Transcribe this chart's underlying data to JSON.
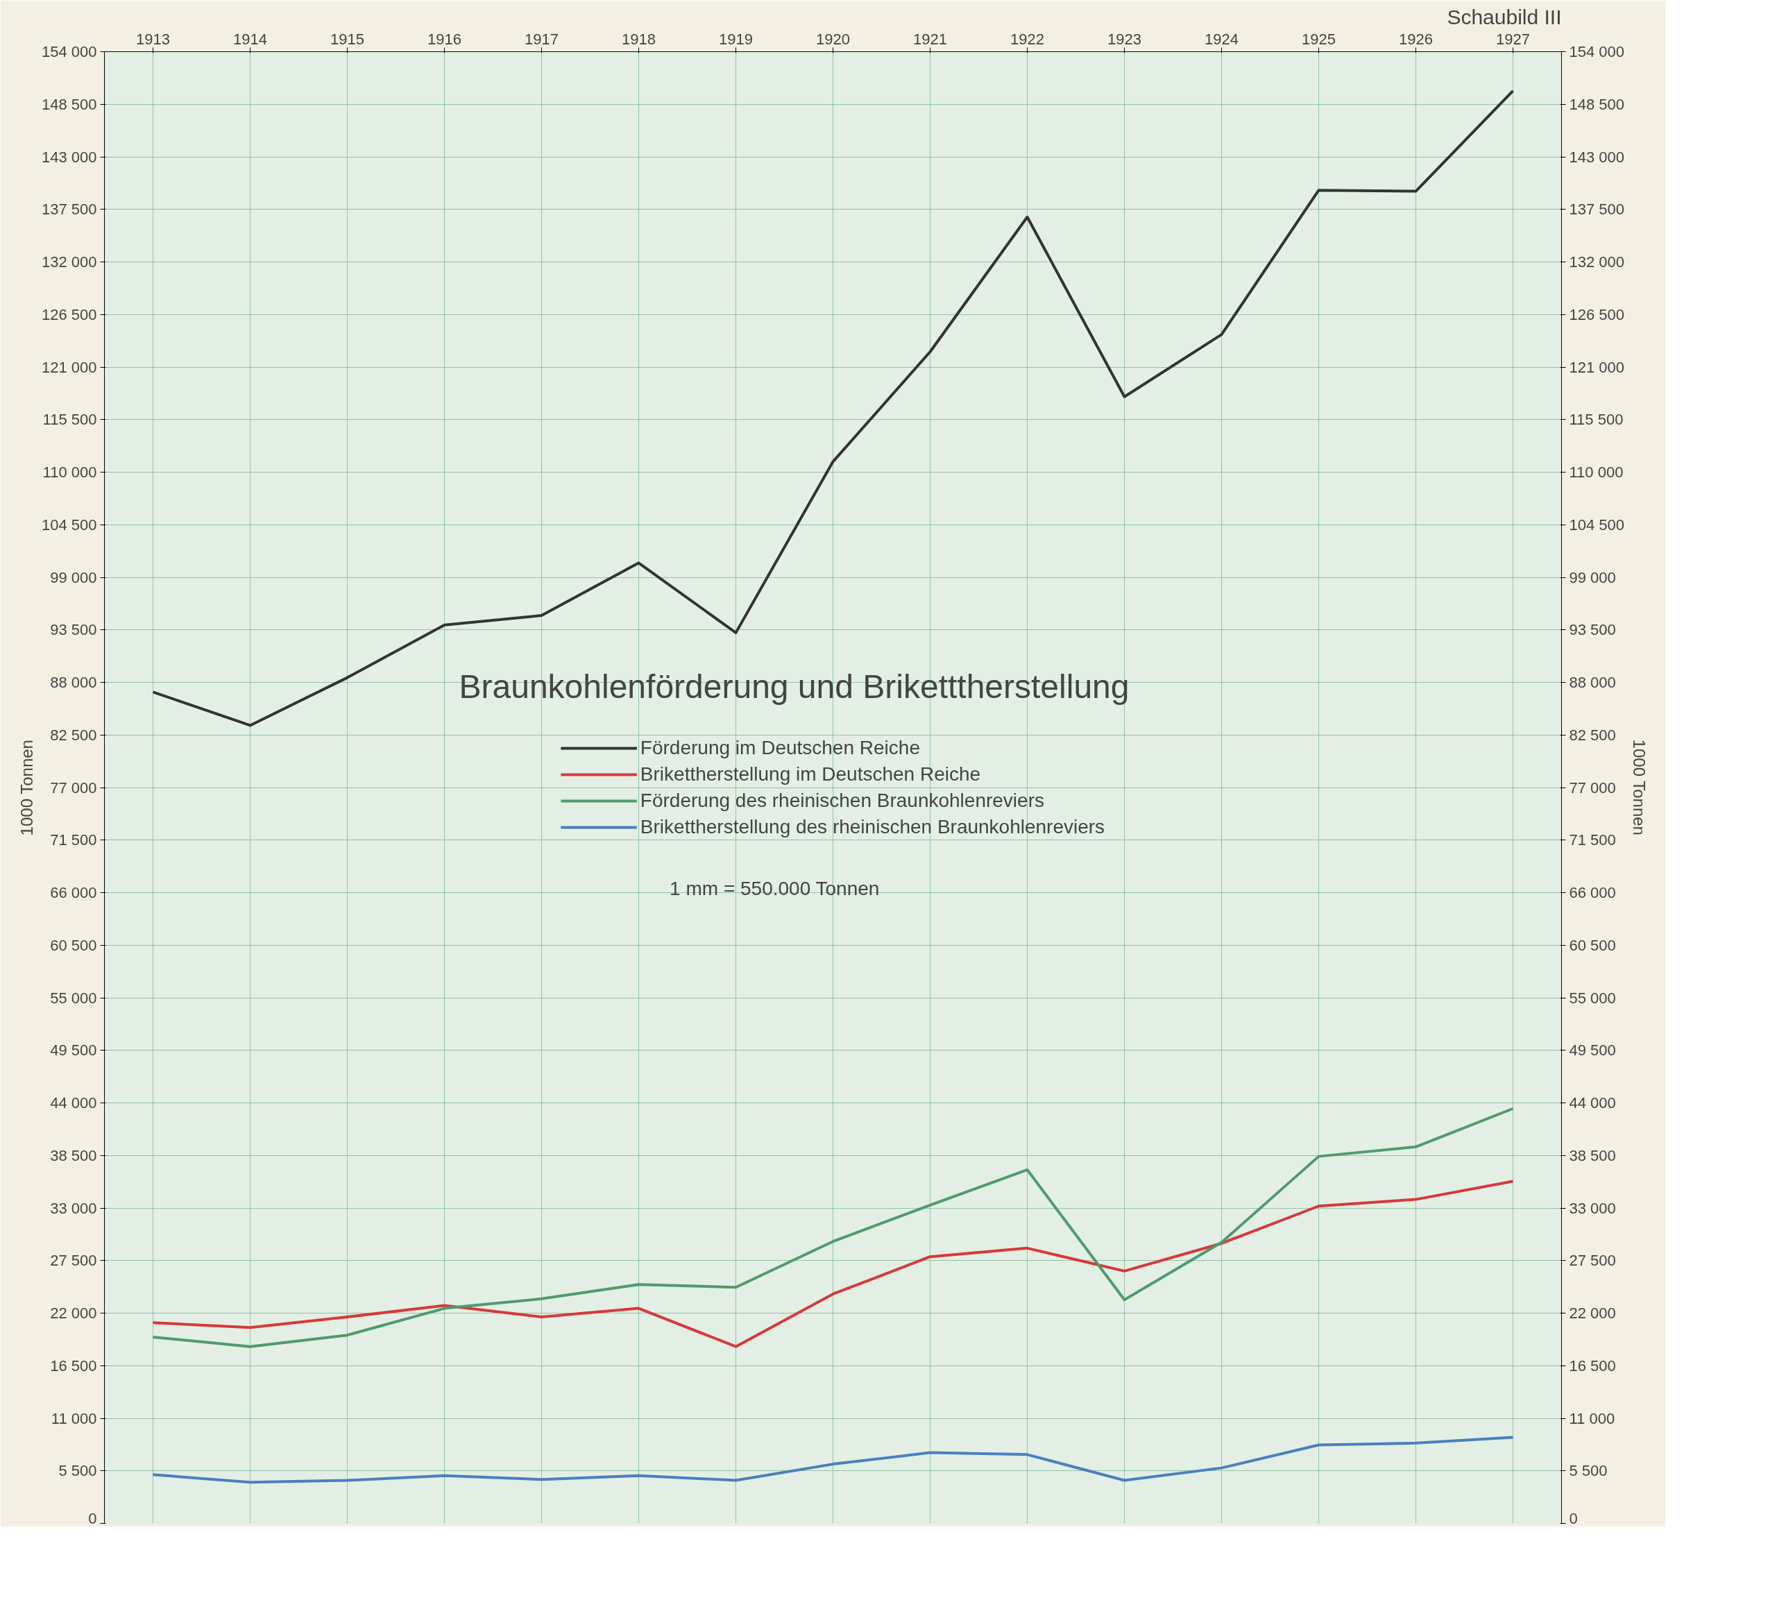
{
  "chart_data": {
    "type": "line",
    "title": "Braunkohlenförderung und Briketttherstellung",
    "ylabel": "1000 Tonnen",
    "y2label": "1000 Tonnen",
    "annotations": [
      "1 mm = 550.000 Tonnen",
      "Schaubild III"
    ],
    "categories": [
      "1913",
      "1914",
      "1915",
      "1916",
      "1917",
      "1918",
      "1919",
      "1920",
      "1921",
      "1922",
      "1923",
      "1924",
      "1925",
      "1926",
      "1927"
    ],
    "series": [
      {
        "name": "Förderung im Deutschen Reiche",
        "color": "#333333",
        "values": [
          87000,
          83500,
          88500,
          94000,
          95000,
          100500,
          93200,
          111100,
          122600,
          136700,
          117900,
          124400,
          139500,
          139400,
          149900
        ]
      },
      {
        "name": "Brikettherstellung im Deutschen Reiche",
        "color": "#d8383a",
        "values": [
          21000,
          20500,
          21600,
          22800,
          21600,
          22500,
          18500,
          24000,
          27900,
          28800,
          26400,
          29300,
          33200,
          33900,
          35800
        ]
      },
      {
        "name": "Förderung des rheinischen Braunkohlenreviers",
        "color": "#4f9a6e",
        "values": [
          19500,
          18500,
          19700,
          22500,
          23500,
          25000,
          24700,
          29500,
          33300,
          37000,
          23400,
          29400,
          38400,
          39400,
          43400
        ]
      },
      {
        "name": "Brikettherstellung des rheinischen Braunkohlenreviers",
        "color": "#4a7fc0",
        "values": [
          5100,
          4300,
          4500,
          5000,
          4600,
          5000,
          4500,
          6200,
          7400,
          7200,
          4500,
          5800,
          8200,
          8400,
          9000
        ]
      }
    ],
    "ylim": [
      0,
      154000
    ],
    "y2lim": [
      0,
      154000
    ],
    "yticks": [
      0,
      {
        "value": 5500,
        "label": "5 500"
      },
      {
        "value": 11000,
        "label": "11 000"
      },
      {
        "value": 16500,
        "label": "16 500"
      },
      {
        "value": 22000,
        "label": "22 000"
      },
      {
        "value": 27500,
        "label": "27 500"
      },
      {
        "value": 33000,
        "label": "33 000"
      },
      {
        "value": 38500,
        "label": "38 500"
      },
      {
        "value": 44000,
        "label": "44 000"
      },
      {
        "value": 49500,
        "label": "49 500"
      },
      {
        "value": 55000,
        "label": "55 000"
      },
      {
        "value": 60500,
        "label": "60 500"
      },
      {
        "value": 66000,
        "label": "66 000"
      },
      {
        "value": 71500,
        "label": "71 500"
      },
      {
        "value": 77000,
        "label": "77 000"
      },
      {
        "value": 82500,
        "label": "82 500"
      },
      {
        "value": 88000,
        "label": "88 000"
      },
      {
        "value": 93500,
        "label": "93 500"
      },
      {
        "value": 99000,
        "label": "99 000"
      },
      {
        "value": 104500,
        "label": "104 500"
      },
      {
        "value": 110000,
        "label": "110 000"
      },
      {
        "value": 115500,
        "label": "115 500"
      },
      {
        "value": 121000,
        "label": "121 000"
      },
      {
        "value": 126500,
        "label": "126 500"
      },
      {
        "value": 132000,
        "label": "132 000"
      },
      {
        "value": 137500,
        "label": "137 500"
      },
      {
        "value": 143000,
        "label": "143 000"
      },
      {
        "value": 148500,
        "label": "148 500"
      },
      {
        "value": 154000,
        "label": "154 000"
      }
    ],
    "y2ticks": [
      0,
      {
        "value": 5500,
        "label": "5 500"
      },
      {
        "value": 11000,
        "label": "11 000"
      },
      {
        "value": 16500,
        "label": "16 500"
      },
      {
        "value": 22000,
        "label": "22 000"
      },
      {
        "value": 27500,
        "label": "27 500"
      },
      {
        "value": 33000,
        "label": "33 000"
      },
      {
        "value": 38500,
        "label": "38 500"
      },
      {
        "value": 44000,
        "label": "44 000"
      },
      {
        "value": 49500,
        "label": "49 500"
      },
      {
        "value": 55000,
        "label": "55 000"
      },
      {
        "value": 60500,
        "label": "60 500"
      },
      {
        "value": 66000,
        "label": "66 000"
      },
      {
        "value": 71500,
        "label": "71 500"
      },
      {
        "value": 77000,
        "label": "77 000"
      },
      {
        "value": 82500,
        "label": "82 500"
      },
      {
        "value": 88000,
        "label": "88 000"
      },
      {
        "value": 93500,
        "label": "93 500"
      },
      {
        "value": 99000,
        "label": "99 000"
      },
      {
        "value": 104500,
        "label": "104 500"
      },
      {
        "value": 110000,
        "label": "110 000"
      },
      {
        "value": 115500,
        "label": "115 500"
      },
      {
        "value": 121000,
        "label": "121 000"
      },
      {
        "value": 126500,
        "label": "126 500"
      },
      {
        "value": 132000,
        "label": "132 000"
      },
      {
        "value": 137500,
        "label": "137 500"
      },
      {
        "value": 143000,
        "label": "143 000"
      },
      {
        "value": 148500,
        "label": "148 500"
      },
      {
        "value": 154000,
        "label": "154 000"
      }
    ],
    "grid": true,
    "legend": "center",
    "marker": "none",
    "line_style": "solid"
  }
}
